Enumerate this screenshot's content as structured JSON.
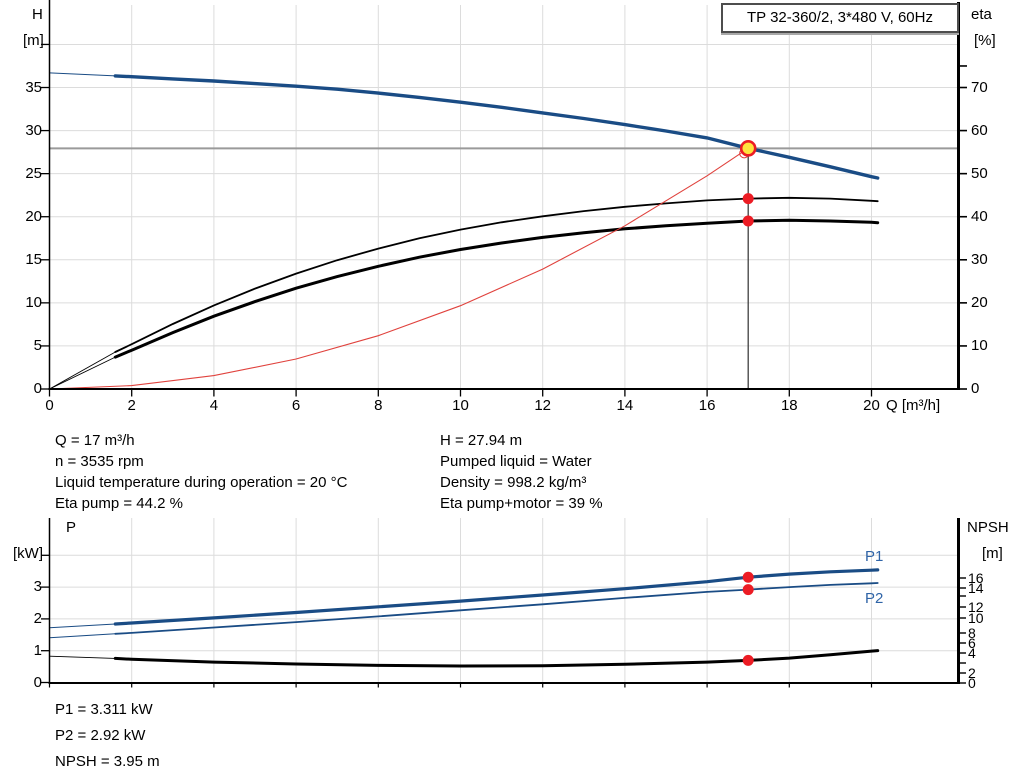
{
  "title_box": {
    "text": "TP 32-360/2, 3*480 V, 60Hz"
  },
  "colors": {
    "curve_blue": "#1a4c85",
    "label_blue": "#2f64a7",
    "dot_red": "#ec1c24",
    "system_red": "#e0423d",
    "op_yellow": "#ffe33e",
    "grid": "#dcdcdc",
    "op_hline": "#9a9a9a",
    "op_vline": "#3f3f3f",
    "axis": "#000000"
  },
  "annotations": {
    "top_left": [
      "Q = 17 m³/h",
      "n = 3535 rpm",
      "Liquid temperature during operation = 20 °C",
      "Eta pump = 44.2 %"
    ],
    "top_right": [
      "H = 27.94 m",
      "Pumped liquid = Water",
      "Density = 998.2 kg/m³",
      "Eta pump+motor = 39 %"
    ],
    "bottom": [
      "P1 = 3.311 kW",
      "P2 = 2.92 kW",
      "NPSH = 3.95 m"
    ]
  },
  "chart_data": [
    {
      "type": "line",
      "title": "TP 32-360/2, 3*480 V, 60Hz",
      "x_axis": {
        "label": "Q [m³/h]",
        "min": 0,
        "max": 22,
        "ticks": [
          0,
          2,
          4,
          6,
          8,
          10,
          12,
          14,
          16,
          18,
          20
        ],
        "grid": true
      },
      "y_left": {
        "label_lines": [
          "H",
          "[m]"
        ],
        "min": 0,
        "max": 44.5,
        "labeled_ticks": [
          35,
          30,
          25,
          20,
          15,
          10,
          5,
          0
        ],
        "unlabeled_ticks": [
          40
        ]
      },
      "y_right": {
        "label_lines": [
          "eta",
          "[%]"
        ],
        "min": 0,
        "max": 89,
        "labeled_ticks": [
          70,
          60,
          50,
          40,
          30,
          20,
          10,
          0
        ],
        "unlabeled_ticks": [
          75
        ]
      },
      "series": [
        {
          "name": "head-curve",
          "axis": "h",
          "color": "#1a4c85",
          "width_thin": 1,
          "width": 3.4,
          "thick_from_q": 1.6,
          "points": [
            [
              0,
              36.7
            ],
            [
              1.6,
              36.35
            ],
            [
              2,
              36.25
            ],
            [
              3,
              36.0
            ],
            [
              4,
              35.75
            ],
            [
              5,
              35.45
            ],
            [
              6,
              35.15
            ],
            [
              7,
              34.8
            ],
            [
              8,
              34.35
            ],
            [
              9,
              33.85
            ],
            [
              10,
              33.3
            ],
            [
              11,
              32.7
            ],
            [
              12,
              32.05
            ],
            [
              13,
              31.4
            ],
            [
              14,
              30.7
            ],
            [
              15,
              29.95
            ],
            [
              16,
              29.15
            ],
            [
              17,
              27.94
            ],
            [
              18,
              26.9
            ],
            [
              19,
              25.8
            ],
            [
              20,
              24.65
            ],
            [
              20.15,
              24.5
            ]
          ]
        },
        {
          "name": "eta-pump-curve",
          "axis": "eta",
          "color": "#000000",
          "width_thin": 0.9,
          "width": 1.8,
          "thick_from_q": 1.6,
          "points": [
            [
              0,
              0
            ],
            [
              1.6,
              8.6
            ],
            [
              2,
              10.4
            ],
            [
              3,
              15.1
            ],
            [
              4,
              19.4
            ],
            [
              5,
              23.3
            ],
            [
              6,
              26.8
            ],
            [
              7,
              29.9
            ],
            [
              8,
              32.6
            ],
            [
              9,
              35.0
            ],
            [
              10,
              37.0
            ],
            [
              11,
              38.7
            ],
            [
              12,
              40.1
            ],
            [
              13,
              41.3
            ],
            [
              14,
              42.3
            ],
            [
              15,
              43.1
            ],
            [
              16,
              43.8
            ],
            [
              17,
              44.2
            ],
            [
              18,
              44.4
            ],
            [
              19,
              44.2
            ],
            [
              20,
              43.7
            ],
            [
              20.15,
              43.6
            ]
          ]
        },
        {
          "name": "eta-pump-motor-curve",
          "axis": "eta",
          "color": "#000000",
          "width_thin": 0.9,
          "width": 3.0,
          "thick_from_q": 1.6,
          "points": [
            [
              0,
              0
            ],
            [
              1.6,
              7.4
            ],
            [
              2,
              9.0
            ],
            [
              3,
              13.1
            ],
            [
              4,
              16.9
            ],
            [
              5,
              20.3
            ],
            [
              6,
              23.4
            ],
            [
              7,
              26.1
            ],
            [
              8,
              28.5
            ],
            [
              9,
              30.6
            ],
            [
              10,
              32.4
            ],
            [
              11,
              33.9
            ],
            [
              12,
              35.2
            ],
            [
              13,
              36.3
            ],
            [
              14,
              37.2
            ],
            [
              15,
              37.9
            ],
            [
              16,
              38.5
            ],
            [
              17,
              39.0
            ],
            [
              18,
              39.2
            ],
            [
              19,
              39.0
            ],
            [
              20,
              38.7
            ],
            [
              20.15,
              38.6
            ]
          ]
        },
        {
          "name": "system-curve",
          "axis": "h",
          "color": "#e0423d",
          "width_thin": 1.1,
          "width": 1.1,
          "thick_from_q": 99,
          "points": [
            [
              0,
              0
            ],
            [
              2,
              0.39
            ],
            [
              4,
              1.55
            ],
            [
              6,
              3.48
            ],
            [
              8,
              6.19
            ],
            [
              10,
              9.67
            ],
            [
              12,
              13.92
            ],
            [
              14,
              18.95
            ],
            [
              16,
              24.75
            ],
            [
              17,
              27.94
            ]
          ]
        }
      ],
      "operating_point": {
        "q": 17,
        "h": 27.94,
        "eta_pump": 44.2,
        "eta_pump_motor": 39
      }
    },
    {
      "type": "line",
      "x_axis": {
        "label": "",
        "min": 0,
        "max": 22,
        "ticks": [
          0,
          2,
          4,
          6,
          8,
          10,
          12,
          14,
          16,
          18,
          20
        ],
        "tick_labels_visible": false,
        "grid": true
      },
      "y_left": {
        "label_lines": [
          "P",
          "[kW]"
        ],
        "min": 0,
        "max": 5.2,
        "labeled_ticks": [
          3,
          2,
          1,
          0
        ],
        "unlabeled_ticks": [
          4
        ]
      },
      "y_right": {
        "label_lines": [
          "NPSH",
          "[m]"
        ],
        "tick_marks": [
          {
            "label": "16",
            "y": 578
          },
          {
            "label": "14",
            "y": 588
          },
          {
            "label": "",
            "y": 596
          },
          {
            "label": "12",
            "y": 607
          },
          {
            "label": "10",
            "y": 618
          },
          {
            "label": "8",
            "y": 633
          },
          {
            "label": "6",
            "y": 643
          },
          {
            "label": "4",
            "y": 653
          },
          {
            "label": "",
            "y": 663
          },
          {
            "label": "2",
            "y": 673
          },
          {
            "label": "0",
            "y": 683
          }
        ]
      },
      "series": [
        {
          "name": "p1-curve",
          "axis": "p",
          "color": "#1a4c85",
          "width_thin": 1,
          "width": 3.2,
          "thick_from_q": 1.6,
          "points": [
            [
              0,
              1.72
            ],
            [
              1.6,
              1.84
            ],
            [
              2,
              1.87
            ],
            [
              4,
              2.03
            ],
            [
              6,
              2.2
            ],
            [
              8,
              2.38
            ],
            [
              10,
              2.56
            ],
            [
              12,
              2.75
            ],
            [
              14,
              2.95
            ],
            [
              16,
              3.17
            ],
            [
              17,
              3.311
            ],
            [
              18,
              3.41
            ],
            [
              19,
              3.48
            ],
            [
              20,
              3.53
            ],
            [
              20.15,
              3.54
            ]
          ]
        },
        {
          "name": "p2-curve",
          "axis": "p",
          "color": "#1a4c85",
          "width_thin": 1,
          "width": 1.8,
          "thick_from_q": 1.6,
          "points": [
            [
              0,
              1.41
            ],
            [
              1.6,
              1.53
            ],
            [
              2,
              1.56
            ],
            [
              4,
              1.73
            ],
            [
              6,
              1.9
            ],
            [
              8,
              2.08
            ],
            [
              10,
              2.27
            ],
            [
              12,
              2.46
            ],
            [
              14,
              2.66
            ],
            [
              16,
              2.85
            ],
            [
              17,
              2.92
            ],
            [
              18,
              3.0
            ],
            [
              19,
              3.07
            ],
            [
              20,
              3.12
            ],
            [
              20.15,
              3.13
            ]
          ]
        },
        {
          "name": "npsh-curve",
          "axis": "npsh",
          "color": "#000000",
          "width_thin": 0.9,
          "width": 3.0,
          "thick_from_q": 1.6,
          "points": [
            [
              0,
              4.7
            ],
            [
              1.6,
              4.3
            ],
            [
              2,
              4.15
            ],
            [
              4,
              3.65
            ],
            [
              6,
              3.3
            ],
            [
              8,
              3.05
            ],
            [
              10,
              2.95
            ],
            [
              12,
              3.0
            ],
            [
              14,
              3.25
            ],
            [
              16,
              3.65
            ],
            [
              17,
              3.95
            ],
            [
              18,
              4.35
            ],
            [
              19,
              4.95
            ],
            [
              20,
              5.6
            ],
            [
              20.15,
              5.7
            ]
          ]
        }
      ],
      "curve_labels": [
        {
          "text": "P1"
        },
        {
          "text": "P2"
        }
      ],
      "operating_point": {
        "q": 17,
        "p1": 3.311,
        "p2": 2.92,
        "npsh": 3.95
      }
    }
  ]
}
